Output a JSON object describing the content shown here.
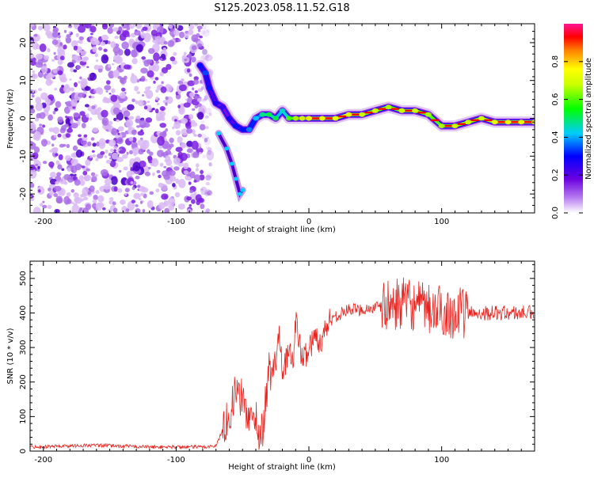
{
  "title": "S125.2023.058.11.52.G18",
  "chart_data": [
    {
      "type": "heatmap",
      "xlabel": "Height of straight line (km)",
      "ylabel": "Frequency (Hz)",
      "xlim": [
        -210,
        170
      ],
      "ylim": [
        -25,
        25
      ],
      "xticks": [
        -200,
        -100,
        0,
        100
      ],
      "yticks": [
        -20,
        -10,
        0,
        10,
        20
      ],
      "colorbar": {
        "label": "Normalized spectral amplitude",
        "range": [
          0,
          1
        ],
        "ticks": [
          0.0,
          0.2,
          0.4,
          0.6,
          0.8
        ],
        "tick_labels": [
          "0.0",
          "0.2",
          "0.4",
          "0.6",
          "0.8"
        ],
        "colors": [
          "#ffffff",
          "#8a2be2",
          "#0000ff",
          "#00ffff",
          "#00ff00",
          "#ffff00",
          "#ff0000",
          "#ff1493"
        ]
      },
      "noise_region_x": [
        -210,
        -80
      ],
      "signal_track": {
        "x": [
          -82,
          -78,
          -75,
          -70,
          -65,
          -60,
          -55,
          -50,
          -45,
          -40,
          -35,
          -30,
          -25,
          -20,
          -15,
          -10,
          -5,
          0,
          10,
          20,
          30,
          40,
          50,
          60,
          70,
          80,
          90,
          100,
          110,
          120,
          130,
          140,
          150,
          160,
          170
        ],
        "y": [
          14,
          12,
          8,
          4,
          3,
          0,
          -2,
          -3,
          -3,
          0,
          1,
          1,
          0,
          2,
          0,
          0,
          0,
          0,
          0,
          0,
          1,
          1,
          2,
          3,
          2,
          2,
          1,
          -2,
          -2,
          -1,
          0,
          -1,
          -1,
          -1,
          -1
        ],
        "amplitude": [
          0.3,
          0.35,
          0.3,
          0.25,
          0.2,
          0.25,
          0.3,
          0.3,
          0.4,
          0.45,
          0.55,
          0.6,
          0.6,
          0.5,
          0.7,
          0.8,
          0.85,
          0.9,
          0.9,
          0.9,
          0.9,
          0.85,
          0.85,
          0.8,
          0.85,
          0.85,
          0.8,
          0.8,
          0.85,
          0.85,
          0.85,
          0.9,
          0.9,
          0.9,
          0.9
        ]
      },
      "secondary_track": {
        "x": [
          -68,
          -62,
          -58,
          -55,
          -52,
          -50
        ],
        "y": [
          -4,
          -8,
          -12,
          -16,
          -20,
          -19
        ]
      }
    },
    {
      "type": "line",
      "xlabel": "Height of straight line (km)",
      "ylabel": "SNR (10 * v/v)",
      "xlim": [
        -210,
        170
      ],
      "ylim": [
        0,
        550
      ],
      "xticks": [
        -200,
        -100,
        0,
        100
      ],
      "yticks": [
        0,
        100,
        200,
        300,
        400,
        500
      ],
      "color": "#e8231f",
      "series": [
        {
          "x": [
            -210,
            -160,
            -120,
            -80,
            -70,
            -62,
            -58,
            -55,
            -52,
            -50,
            -48,
            -45,
            -42,
            -40,
            -38,
            -35,
            -32,
            -30,
            -28,
            -25,
            -22,
            -20,
            -15,
            -12,
            -10,
            -5,
            0,
            5,
            10,
            15,
            20,
            25,
            30,
            40,
            50,
            60,
            70,
            80,
            90,
            95,
            100,
            105,
            110,
            120,
            130,
            140,
            150,
            160,
            170
          ],
          "y": [
            12,
            17,
            12,
            12,
            15,
            90,
            130,
            180,
            150,
            160,
            120,
            100,
            80,
            110,
            50,
            60,
            160,
            240,
            210,
            260,
            350,
            240,
            280,
            260,
            380,
            260,
            300,
            330,
            320,
            380,
            390,
            400,
            410,
            410,
            415,
            420,
            430,
            420,
            410,
            400,
            410,
            400,
            400,
            400,
            400,
            400,
            400,
            400,
            400
          ]
        }
      ]
    }
  ]
}
